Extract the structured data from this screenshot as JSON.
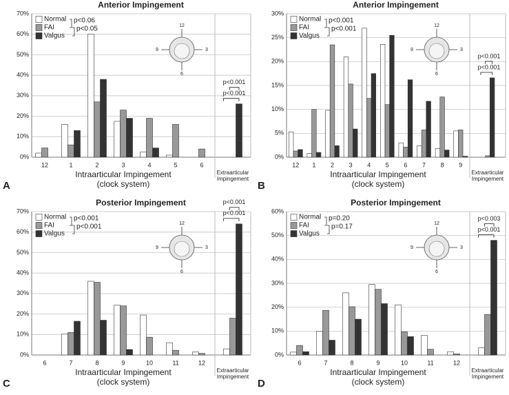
{
  "chart_data": [
    {
      "type": "bar",
      "title": "Anterior Impingement",
      "label": "A",
      "categories": [
        "12",
        "1",
        "2",
        "3",
        "4",
        "5",
        "6",
        "Extraarticular Impingement"
      ],
      "xlabel": "Intraarticular Impingement (clock system)",
      "series": [
        {
          "name": "Normal",
          "color": "#ffffff",
          "values": [
            2,
            16,
            60,
            17.5,
            2.5,
            1,
            0,
            0
          ]
        },
        {
          "name": "FAI",
          "color": "#999999",
          "values": [
            4.5,
            6,
            27,
            23,
            19,
            16,
            4,
            0
          ]
        },
        {
          "name": "Valgus",
          "color": "#333333",
          "values": [
            0,
            13,
            38,
            19,
            4.5,
            0,
            0,
            26
          ]
        }
      ],
      "ylim": [
        0,
        70
      ],
      "yticks": [
        {
          "value": 0,
          "label": "0%"
        },
        {
          "value": 10,
          "label": "10%"
        },
        {
          "value": 20,
          "label": "20%"
        },
        {
          "value": 30,
          "label": "30%"
        },
        {
          "value": 40,
          "label": "40%"
        },
        {
          "value": 50,
          "label": "50%"
        },
        {
          "value": 60,
          "label": "60%"
        },
        {
          "value": 70,
          "label": "70%"
        }
      ],
      "grid": true,
      "legend": "top-left",
      "legend_pvalues": [
        "p<0.06",
        "p<0.05"
      ],
      "extra_pvalues": [
        "p<0.001",
        "p<0.001"
      ],
      "inset_labels": [
        "12",
        "3",
        "6",
        "9"
      ]
    },
    {
      "type": "bar",
      "title": "Anterior Impingement",
      "label": "B",
      "categories": [
        "12",
        "1",
        "2",
        "3",
        "4",
        "5",
        "6",
        "7",
        "8",
        "9",
        "Extraarticular Impingement"
      ],
      "xlabel": "Intraarticular Impingement (clock system)",
      "series": [
        {
          "name": "Normal",
          "color": "#ffffff",
          "values": [
            5.3,
            0.8,
            9.8,
            21,
            27,
            23.6,
            3,
            2.4,
            1.8,
            5.5,
            0
          ]
        },
        {
          "name": "FAI",
          "color": "#999999",
          "values": [
            1.3,
            10,
            23.5,
            15.3,
            12.3,
            11,
            2.1,
            5.7,
            12.6,
            5.7,
            0.3
          ]
        },
        {
          "name": "Valgus",
          "color": "#333333",
          "values": [
            1.6,
            1,
            2.4,
            5.9,
            17.5,
            25.5,
            16.2,
            11.7,
            1.5,
            0.2,
            16.6
          ]
        }
      ],
      "ylim": [
        0,
        30
      ],
      "yticks": [
        {
          "value": 0,
          "label": "0%"
        },
        {
          "value": 5,
          "label": "5%"
        },
        {
          "value": 10,
          "label": "10%"
        },
        {
          "value": 15,
          "label": "15%"
        },
        {
          "value": 20,
          "label": "20%"
        },
        {
          "value": 25,
          "label": "25%"
        },
        {
          "value": 30,
          "label": "30%"
        }
      ],
      "grid": true,
      "legend": "top-left",
      "legend_pvalues": [
        "p<0.001",
        "p<0.001"
      ],
      "extra_pvalues": [
        "p<0.001",
        "p<0.001"
      ],
      "inset_labels": [
        "12",
        "3",
        "6",
        "9"
      ]
    },
    {
      "type": "bar",
      "title": "Posterior Impingement",
      "label": "C",
      "categories": [
        "6",
        "7",
        "8",
        "9",
        "10",
        "11",
        "12",
        "Extraarticular Impingement"
      ],
      "xlabel": "Intraarticular Impingement (clock system)",
      "series": [
        {
          "name": "Normal",
          "color": "#ffffff",
          "values": [
            0,
            10.3,
            36,
            24.3,
            19.5,
            6,
            1.5,
            3
          ]
        },
        {
          "name": "FAI",
          "color": "#999999",
          "values": [
            0,
            11,
            35.5,
            24,
            8.7,
            2.3,
            0.8,
            18
          ]
        },
        {
          "name": "Valgus",
          "color": "#333333",
          "values": [
            0,
            16.5,
            17,
            2.7,
            0,
            0,
            0,
            64
          ]
        }
      ],
      "ylim": [
        0,
        70
      ],
      "yticks": [
        {
          "value": 0,
          "label": "0%"
        },
        {
          "value": 10,
          "label": "10%"
        },
        {
          "value": 20,
          "label": "20%"
        },
        {
          "value": 30,
          "label": "30%"
        },
        {
          "value": 40,
          "label": "40%"
        },
        {
          "value": 50,
          "label": "50%"
        },
        {
          "value": 60,
          "label": "60%"
        },
        {
          "value": 70,
          "label": "70%"
        }
      ],
      "grid": true,
      "legend": "top-left",
      "legend_pvalues": [
        "p<0.001",
        "p<0.001"
      ],
      "extra_pvalues": [
        "p<0.001",
        "p<0.001"
      ],
      "inset_labels": [
        "12",
        "3",
        "6",
        "9"
      ]
    },
    {
      "type": "bar",
      "title": "Posterior Impingement",
      "label": "D",
      "categories": [
        "6",
        "7",
        "8",
        "9",
        "10",
        "11",
        "12",
        "Extraarticular Impingement"
      ],
      "xlabel": "Intraarticular Impingement (clock system)",
      "series": [
        {
          "name": "Normal",
          "color": "#ffffff",
          "values": [
            1.2,
            10,
            26,
            29.5,
            21,
            8.2,
            1.4,
            3
          ]
        },
        {
          "name": "FAI",
          "color": "#999999",
          "values": [
            4,
            18.7,
            20.2,
            27.5,
            9.7,
            2.4,
            0.5,
            17
          ]
        },
        {
          "name": "Valgus",
          "color": "#333333",
          "values": [
            1.4,
            6.2,
            15,
            21.5,
            7.7,
            0,
            0,
            48
          ]
        }
      ],
      "ylim": [
        0,
        60
      ],
      "yticks": [
        {
          "value": 0,
          "label": "0%"
        },
        {
          "value": 10,
          "label": "10%"
        },
        {
          "value": 20,
          "label": "20%"
        },
        {
          "value": 30,
          "label": "30%"
        },
        {
          "value": 40,
          "label": "40%"
        },
        {
          "value": 50,
          "label": "50%"
        },
        {
          "value": 60,
          "label": "60%"
        }
      ],
      "grid": true,
      "legend": "top-left",
      "legend_pvalues": [
        "p=0.20",
        "p=0.17"
      ],
      "extra_pvalues": [
        "p<0.003",
        "p<0.001"
      ],
      "inset_labels": [
        "12",
        "3",
        "6",
        "9"
      ]
    }
  ]
}
